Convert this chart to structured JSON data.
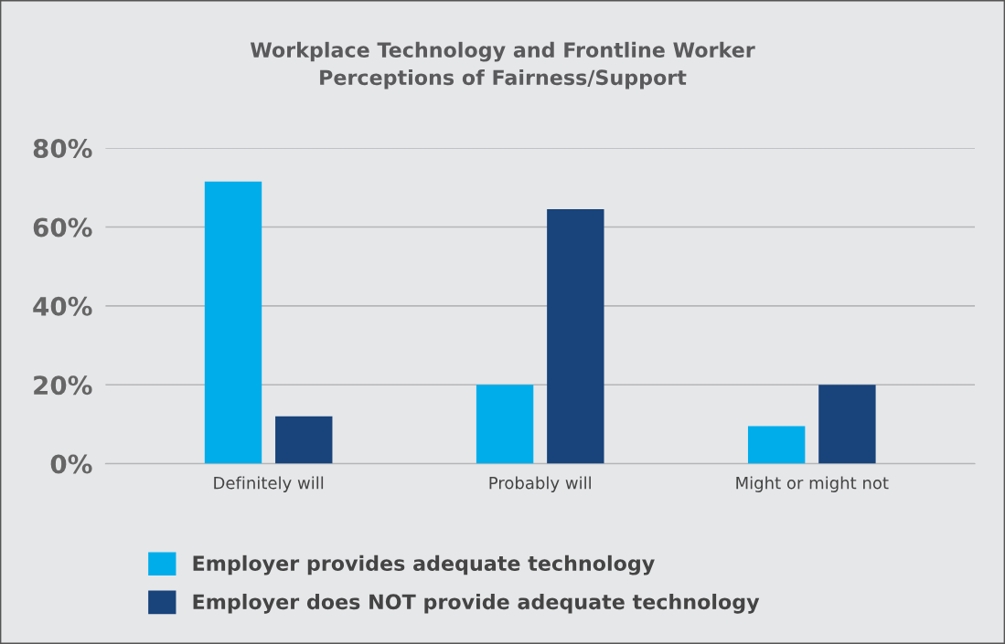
{
  "chart_data": {
    "type": "bar",
    "title": "Workplace Technology and Frontline Worker\nPerceptions of Fairness/Support",
    "categories": [
      "Definitely will",
      "Probably will",
      "Might or might not"
    ],
    "series": [
      {
        "name": "Employer provides adequate technology",
        "color": "#00adeb",
        "values": [
          71.5,
          20,
          9.5
        ]
      },
      {
        "name": "Employer does NOT provide adequate technology",
        "color": "#18437b",
        "values": [
          12,
          64.5,
          20
        ]
      }
    ],
    "ylim": [
      0,
      80
    ],
    "yticks": [
      {
        "value": 0,
        "label": "0%"
      },
      {
        "value": 20,
        "label": "20%"
      },
      {
        "value": 40,
        "label": "40%"
      },
      {
        "value": 60,
        "label": "60%"
      },
      {
        "value": 80,
        "label": "80%"
      }
    ],
    "grid": "y",
    "legend": "bottom"
  }
}
